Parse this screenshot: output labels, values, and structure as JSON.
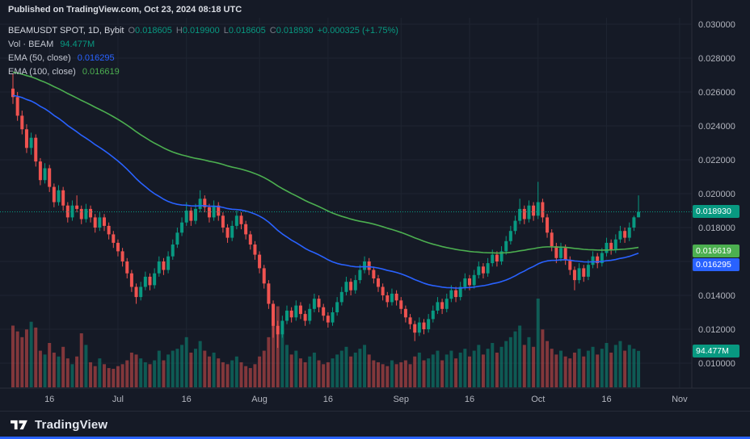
{
  "header": {
    "published": "Published on TradingView.com, Oct 23, 2024 08:18 UTC"
  },
  "legend": {
    "symbol": "BEAMUSDT SPOT, 1D, Bybit",
    "ohlc": {
      "o_label": "O",
      "o": "0.018605",
      "h_label": "H",
      "h": "0.019900",
      "l_label": "L",
      "l": "0.018605",
      "c_label": "C",
      "c": "0.018930",
      "change": "+0.000325 (+1.75%)"
    },
    "volume_label": "Vol · BEAM",
    "volume_value": "94.477M",
    "ema50_label": "EMA (50, close)",
    "ema50_value": "0.016295",
    "ema100_label": "EMA (100, close)",
    "ema100_value": "0.016619"
  },
  "price_axis": {
    "ticks": [
      "0.030000",
      "0.028000",
      "0.026000",
      "0.024000",
      "0.022000",
      "0.020000",
      "0.018000",
      "0.016000",
      "0.014000",
      "0.012000",
      "0.010000"
    ],
    "badges": [
      {
        "name": "last-price-badge",
        "text": "0.018930",
        "bg": "#089981",
        "price_micro": 18930
      },
      {
        "name": "ema100-badge",
        "text": "0.016619",
        "bg": "#4caf50",
        "price_micro": 16619
      },
      {
        "name": "ema50-badge",
        "text": "0.016295",
        "bg": "#2962ff",
        "price_micro": 16295
      },
      {
        "name": "volume-badge",
        "text": "94.477M",
        "bg": "#089981",
        "price_micro": null
      }
    ]
  },
  "time_axis": {
    "labels": [
      {
        "text": "16",
        "i": 8
      },
      {
        "text": "Jul",
        "i": 23
      },
      {
        "text": "16",
        "i": 38
      },
      {
        "text": "Aug",
        "i": 54
      },
      {
        "text": "16",
        "i": 69
      },
      {
        "text": "Sep",
        "i": 85
      },
      {
        "text": "16",
        "i": 100
      },
      {
        "text": "Oct",
        "i": 115
      },
      {
        "text": "16",
        "i": 130
      },
      {
        "text": "Nov",
        "i": 146
      }
    ]
  },
  "footer": {
    "brand": "TradingView"
  },
  "chart_data": {
    "type": "candlestick",
    "title": "BEAMUSDT SPOT, 1D, Bybit",
    "symbol": "BEAMUSDT",
    "exchange": "Bybit",
    "interval": "1D",
    "date_range": "Jun 8 2024 - Oct 23 2024 (daily candles)",
    "last_close": 0.01893,
    "ohlc_last": {
      "o": 0.018605,
      "h": 0.0199,
      "l": 0.018605,
      "c": 0.01893
    },
    "change_abs": "+0.000325",
    "change_pct": "+1.75%",
    "volume_last_m": 94.477,
    "ylim": [
      0.0096,
      0.0306
    ],
    "y_tick_step": 0.002,
    "grid": true,
    "legend_position": "top-left",
    "scale_note": "candles as [open,high,low,close] in 1e-6 USDT; volumes in millions of BEAM",
    "candles": [
      [
        26200,
        27100,
        25300,
        25700
      ],
      [
        25700,
        26000,
        24300,
        24600
      ],
      [
        24600,
        24900,
        23500,
        23800
      ],
      [
        23800,
        24100,
        22400,
        22700
      ],
      [
        22700,
        23600,
        22300,
        23300
      ],
      [
        23300,
        23500,
        21600,
        21900
      ],
      [
        21900,
        22100,
        20500,
        20800
      ],
      [
        20800,
        21800,
        20600,
        21500
      ],
      [
        21500,
        21700,
        20100,
        20400
      ],
      [
        20400,
        20600,
        19200,
        19500
      ],
      [
        19500,
        20500,
        19300,
        20200
      ],
      [
        20200,
        20400,
        19000,
        19300
      ],
      [
        19300,
        19500,
        18300,
        18600
      ],
      [
        18600,
        19600,
        18400,
        19300
      ],
      [
        19300,
        19900,
        18900,
        19100
      ],
      [
        19100,
        19300,
        18200,
        18500
      ],
      [
        18500,
        19400,
        18300,
        19100
      ],
      [
        19100,
        19300,
        18300,
        18600
      ],
      [
        18600,
        18800,
        17700,
        18000
      ],
      [
        18000,
        18900,
        17800,
        18600
      ],
      [
        18600,
        18800,
        17800,
        18100
      ],
      [
        18100,
        18300,
        17300,
        17600
      ],
      [
        17600,
        17800,
        16800,
        17100
      ],
      [
        17100,
        17300,
        16300,
        16600
      ],
      [
        16600,
        16800,
        15700,
        16000
      ],
      [
        16000,
        16200,
        15000,
        15300
      ],
      [
        15300,
        15500,
        14200,
        14500
      ],
      [
        14500,
        14700,
        13500,
        13900
      ],
      [
        13900,
        14800,
        13700,
        14500
      ],
      [
        14500,
        15400,
        14300,
        15100
      ],
      [
        15100,
        15300,
        14300,
        14600
      ],
      [
        14600,
        15600,
        14400,
        15300
      ],
      [
        15300,
        16300,
        15100,
        16000
      ],
      [
        16000,
        16200,
        15200,
        15500
      ],
      [
        15500,
        16600,
        15300,
        16300
      ],
      [
        16300,
        17300,
        16100,
        17000
      ],
      [
        17000,
        18000,
        16800,
        17700
      ],
      [
        17700,
        18600,
        17500,
        18300
      ],
      [
        18300,
        19500,
        18100,
        19000
      ],
      [
        19000,
        19200,
        18100,
        18400
      ],
      [
        18400,
        19400,
        18200,
        19100
      ],
      [
        19100,
        20200,
        18900,
        19700
      ],
      [
        19700,
        19900,
        18900,
        19200
      ],
      [
        19200,
        19400,
        18300,
        18600
      ],
      [
        18600,
        19600,
        18400,
        19300
      ],
      [
        19300,
        19500,
        18400,
        18700
      ],
      [
        18700,
        18900,
        17700,
        18000
      ],
      [
        18000,
        18200,
        17100,
        17400
      ],
      [
        17400,
        18400,
        17200,
        18100
      ],
      [
        18100,
        19000,
        17900,
        18700
      ],
      [
        18700,
        18900,
        17900,
        18200
      ],
      [
        18200,
        18400,
        17300,
        17600
      ],
      [
        17600,
        17800,
        16700,
        17000
      ],
      [
        17000,
        17200,
        16100,
        16400
      ],
      [
        16400,
        16600,
        15300,
        15600
      ],
      [
        15600,
        15800,
        14400,
        14700
      ],
      [
        14700,
        14900,
        13200,
        13500
      ],
      [
        13500,
        13700,
        11500,
        12200
      ],
      [
        12200,
        12500,
        10900,
        11700
      ],
      [
        11700,
        12800,
        11500,
        12500
      ],
      [
        12500,
        13400,
        12300,
        13100
      ],
      [
        13100,
        13300,
        12400,
        12700
      ],
      [
        12700,
        13700,
        12500,
        13400
      ],
      [
        13400,
        13600,
        12600,
        12900
      ],
      [
        12900,
        13100,
        12200,
        12500
      ],
      [
        12500,
        13500,
        12300,
        13200
      ],
      [
        13200,
        14100,
        13000,
        13800
      ],
      [
        13800,
        14000,
        13000,
        13300
      ],
      [
        13300,
        13500,
        12500,
        12800
      ],
      [
        12800,
        13000,
        12100,
        12400
      ],
      [
        12400,
        13300,
        12200,
        13000
      ],
      [
        13000,
        13900,
        12800,
        13600
      ],
      [
        13600,
        14500,
        13400,
        14200
      ],
      [
        14200,
        15100,
        14000,
        14800
      ],
      [
        14800,
        15000,
        14000,
        14300
      ],
      [
        14300,
        15200,
        14100,
        14900
      ],
      [
        14900,
        15800,
        14700,
        15500
      ],
      [
        15500,
        16300,
        15300,
        16000
      ],
      [
        16000,
        16200,
        15200,
        15500
      ],
      [
        15500,
        15700,
        14700,
        15000
      ],
      [
        15000,
        15200,
        14200,
        14500
      ],
      [
        14500,
        14700,
        13700,
        14000
      ],
      [
        14000,
        14200,
        13300,
        13600
      ],
      [
        13600,
        14400,
        13400,
        14100
      ],
      [
        14100,
        14300,
        13400,
        13700
      ],
      [
        13700,
        13900,
        12900,
        13200
      ],
      [
        13200,
        13400,
        12400,
        12700
      ],
      [
        12700,
        12900,
        12000,
        12300
      ],
      [
        12300,
        12500,
        11300,
        11800
      ],
      [
        11800,
        12700,
        11600,
        12400
      ],
      [
        12400,
        12600,
        11700,
        12000
      ],
      [
        12000,
        12900,
        11800,
        12600
      ],
      [
        12600,
        13400,
        12400,
        13100
      ],
      [
        13100,
        13900,
        12900,
        13600
      ],
      [
        13600,
        13800,
        12900,
        13200
      ],
      [
        13200,
        14100,
        13000,
        13800
      ],
      [
        13800,
        14600,
        13600,
        14300
      ],
      [
        14300,
        14500,
        13600,
        13900
      ],
      [
        13900,
        14800,
        13700,
        14500
      ],
      [
        14500,
        15300,
        14300,
        15000
      ],
      [
        15000,
        15200,
        14300,
        14600
      ],
      [
        14600,
        15500,
        14400,
        15200
      ],
      [
        15200,
        16000,
        15000,
        15700
      ],
      [
        15700,
        15900,
        15000,
        15300
      ],
      [
        15300,
        16200,
        15100,
        15900
      ],
      [
        15900,
        16700,
        15700,
        16400
      ],
      [
        16400,
        16600,
        15700,
        16000
      ],
      [
        16000,
        16900,
        15800,
        16600
      ],
      [
        16600,
        17500,
        16400,
        17200
      ],
      [
        17200,
        18100,
        17000,
        17800
      ],
      [
        17800,
        18700,
        17600,
        18400
      ],
      [
        18400,
        19700,
        18200,
        19100
      ],
      [
        19100,
        19300,
        18200,
        18500
      ],
      [
        18500,
        19600,
        18300,
        19300
      ],
      [
        19300,
        19500,
        18400,
        18700
      ],
      [
        18700,
        20700,
        18500,
        19500
      ],
      [
        19500,
        19700,
        18300,
        18600
      ],
      [
        18600,
        18800,
        17400,
        17700
      ],
      [
        17700,
        17900,
        16600,
        16900
      ],
      [
        16900,
        17100,
        15900,
        16200
      ],
      [
        16200,
        17100,
        16000,
        16800
      ],
      [
        16800,
        17000,
        15800,
        16100
      ],
      [
        16100,
        16300,
        15200,
        15500
      ],
      [
        15500,
        15700,
        14300,
        14900
      ],
      [
        14900,
        15900,
        14700,
        15600
      ],
      [
        15600,
        15800,
        14800,
        15100
      ],
      [
        15100,
        16100,
        14900,
        15800
      ],
      [
        15800,
        16600,
        15600,
        16300
      ],
      [
        16300,
        16500,
        15600,
        15900
      ],
      [
        15900,
        16800,
        15700,
        16500
      ],
      [
        16500,
        17400,
        16300,
        17100
      ],
      [
        17100,
        17300,
        16400,
        16700
      ],
      [
        16700,
        17600,
        16500,
        17300
      ],
      [
        17300,
        18100,
        17100,
        17800
      ],
      [
        17800,
        18000,
        17100,
        17400
      ],
      [
        17400,
        18300,
        17200,
        18000
      ],
      [
        18000,
        18700,
        17800,
        18605
      ],
      [
        18605,
        19900,
        18605,
        18930
      ]
    ],
    "volumes_m": [
      160,
      145,
      130,
      150,
      170,
      155,
      95,
      85,
      115,
      90,
      80,
      105,
      75,
      60,
      80,
      140,
      110,
      65,
      55,
      75,
      60,
      50,
      48,
      55,
      60,
      70,
      90,
      85,
      75,
      65,
      60,
      70,
      95,
      70,
      85,
      95,
      100,
      110,
      130,
      90,
      100,
      120,
      95,
      80,
      90,
      75,
      65,
      60,
      70,
      80,
      65,
      55,
      50,
      60,
      80,
      95,
      130,
      180,
      210,
      150,
      110,
      85,
      95,
      75,
      65,
      80,
      90,
      70,
      60,
      65,
      75,
      85,
      95,
      105,
      80,
      90,
      100,
      110,
      85,
      70,
      65,
      60,
      55,
      70,
      60,
      65,
      70,
      60,
      80,
      90,
      70,
      75,
      85,
      95,
      70,
      85,
      95,
      75,
      90,
      100,
      80,
      95,
      110,
      85,
      100,
      115,
      90,
      105,
      120,
      130,
      145,
      160,
      110,
      130,
      105,
      230,
      150,
      120,
      100,
      85,
      95,
      80,
      75,
      90,
      100,
      80,
      95,
      105,
      85,
      100,
      115,
      90,
      110,
      120,
      95,
      110,
      100,
      94.477
    ],
    "overlays": [
      {
        "id": "ema50-line",
        "name": "EMA (50, close)",
        "period": 50,
        "color": "#2962ff",
        "seed_micro": 25800,
        "last_value": 0.016295
      },
      {
        "id": "ema100-line",
        "name": "EMA (100, close)",
        "period": 100,
        "color": "#4caf50",
        "seed_micro": 27200,
        "last_value": 0.016619
      }
    ],
    "colors": {
      "up": "#089981",
      "down": "#ef5350",
      "vol_up": "rgba(8,153,129,0.5)",
      "vol_down": "rgba(239,83,80,0.5)",
      "grid": "#1e2431",
      "axis_text": "#b2b5be",
      "axis_line": "#2a2e39",
      "bg": "#151a26",
      "last_price_line": "#089981"
    }
  }
}
